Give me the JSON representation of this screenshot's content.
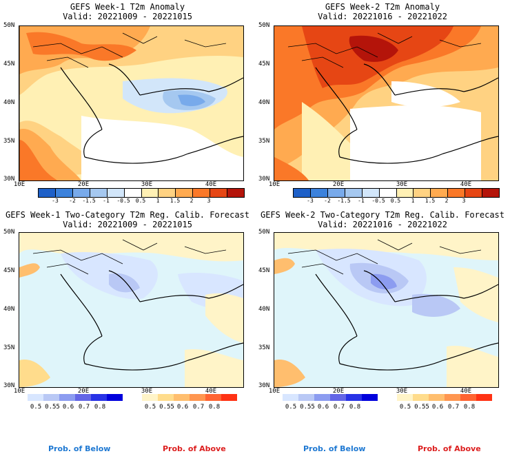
{
  "panels": [
    {
      "title": "GEFS Week-1 T2m Anomaly",
      "valid": "Valid: 20221009 - 20221015"
    },
    {
      "title": "GEFS Week-2 T2m Anomaly",
      "valid": "Valid: 20221016 - 20221022"
    },
    {
      "title": "GEFS Week-1 Two-Category T2m Reg. Calib. Forecast",
      "valid": "Valid: 20221009 - 20221015"
    },
    {
      "title": "GEFS Week-2 Two-Category T2m Reg. Calib. Forecast",
      "valid": "Valid: 20221016 - 20221022"
    }
  ],
  "lat_labels": [
    "50N",
    "45N",
    "40N",
    "35N",
    "30N"
  ],
  "lon_labels": [
    "10E",
    "20E",
    "30E",
    "40E"
  ],
  "anomaly_colorbar": {
    "labels": [
      "-3",
      "-2",
      "-1.5",
      "-1",
      "-0.5",
      "0.5",
      "1",
      "1.5",
      "2",
      "3"
    ],
    "colors": [
      "#1e60c8",
      "#3c82dc",
      "#78aaeb",
      "#a5c8f0",
      "#d2e6fa",
      "#ffffff",
      "#fff0b4",
      "#ffd282",
      "#ffaa50",
      "#fa7828",
      "#e64614",
      "#b4140a"
    ]
  },
  "prob_below_colorbar": {
    "labels": [
      "0.5",
      "0.55",
      "0.6",
      "0.7",
      "0.8"
    ],
    "colors": [
      "#d8e6ff",
      "#b9c8f5",
      "#8c9cf0",
      "#6466e6",
      "#2832e6",
      "#0000dc"
    ]
  },
  "prob_above_colorbar": {
    "labels": [
      "0.5",
      "0.55",
      "0.6",
      "0.7",
      "0.8"
    ],
    "colors": [
      "#fff4c8",
      "#ffdc8c",
      "#ffbe6e",
      "#ff9650",
      "#ff6432",
      "#ff3214"
    ]
  },
  "footer": {
    "below": "Prob. of Below",
    "above": "Prob. of Above",
    "below_color": "#1e78d2",
    "above_color": "#dc1e1e"
  }
}
